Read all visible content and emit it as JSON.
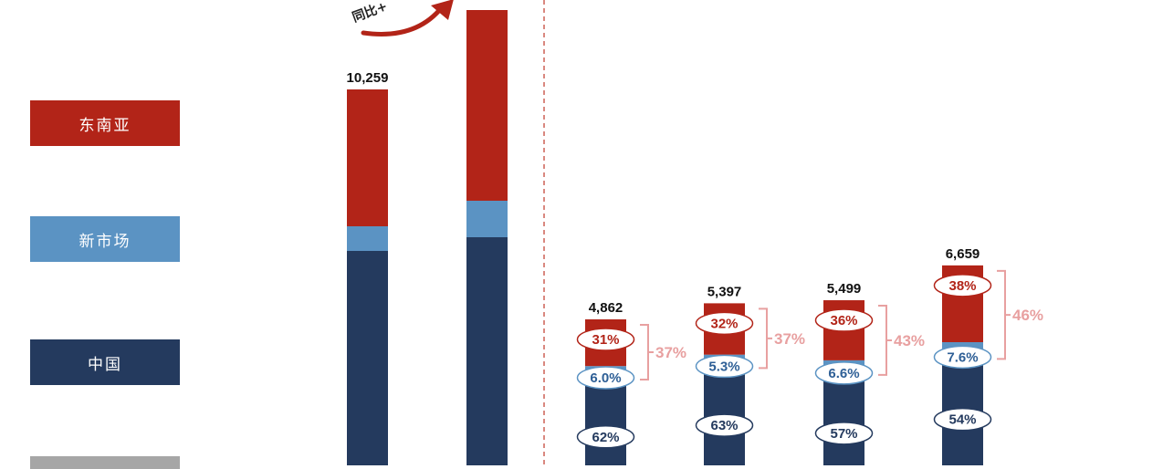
{
  "colors": {
    "southeast_asia": "#b22418",
    "new_market": "#5b93c3",
    "china": "#243a5e",
    "other": "#a6a6a6",
    "bracket": "#e8a0a0",
    "divider": "#c0392b"
  },
  "legend": [
    {
      "key": "southeast_asia",
      "label": "东南亚"
    },
    {
      "key": "new_market",
      "label": "新市场"
    },
    {
      "key": "china",
      "label": "中国"
    },
    {
      "key": "other",
      "label": ""
    }
  ],
  "arrow_label": "同比+",
  "chart_data": {
    "type": "bar",
    "stacked": true,
    "bars": [
      {
        "total_label": "10,259",
        "total": 10259,
        "shares": {
          "china": null,
          "new_market": null,
          "southeast_asia": null
        }
      },
      {
        "total_label": "",
        "total": null,
        "shares": {
          "china": null,
          "new_market": null,
          "southeast_asia": null
        }
      },
      {
        "total_label": "4,862",
        "total": 4862,
        "shares": {
          "china": "62%",
          "new_market": "6.0%",
          "southeast_asia": "31%"
        },
        "bracket_label": "37%"
      },
      {
        "total_label": "5,397",
        "total": 5397,
        "shares": {
          "china": "63%",
          "new_market": "5.3%",
          "southeast_asia": "32%"
        },
        "bracket_label": "37%"
      },
      {
        "total_label": "5,499",
        "total": 5499,
        "shares": {
          "china": "57%",
          "new_market": "6.6%",
          "southeast_asia": "36%"
        },
        "bracket_label": "43%"
      },
      {
        "total_label": "6,659",
        "total": 6659,
        "shares": {
          "china": "54%",
          "new_market": "7.6%",
          "southeast_asia": "38%"
        },
        "bracket_label": "46%"
      }
    ]
  }
}
